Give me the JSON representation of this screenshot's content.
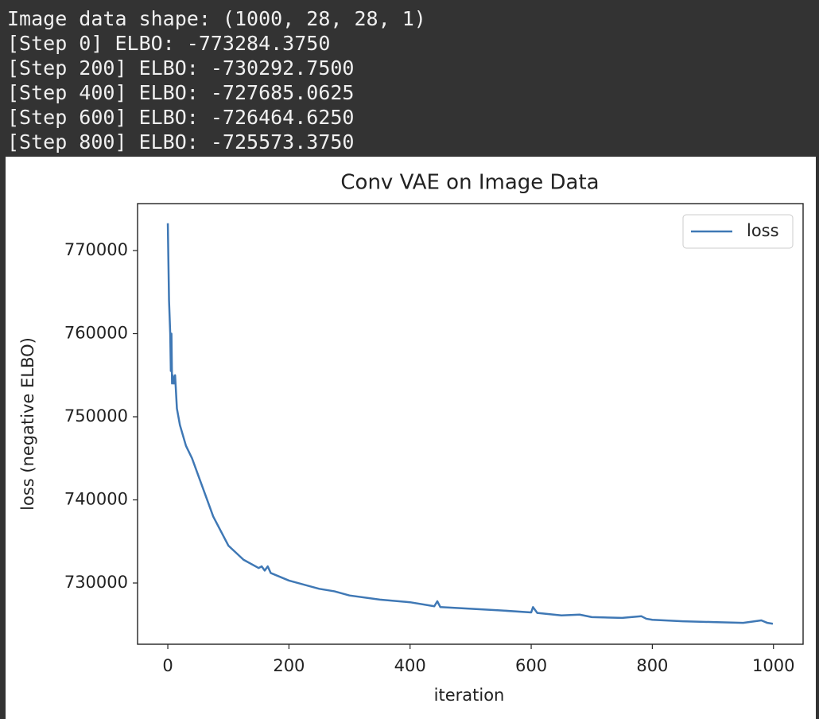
{
  "console": {
    "lines": [
      "Image data shape: (1000, 28, 28, 1)",
      "[Step 0] ELBO: -773284.3750",
      "[Step 200] ELBO: -730292.7500",
      "[Step 400] ELBO: -727685.0625",
      "[Step 600] ELBO: -726464.6250",
      "[Step 800] ELBO: -725573.3750"
    ]
  },
  "chart_data": {
    "type": "line",
    "title": "Conv VAE on Image Data",
    "x_label": "iteration",
    "y_label": "loss (negative ELBO)",
    "x": [
      0,
      2,
      4,
      5,
      6,
      7,
      8,
      10,
      12,
      15,
      20,
      30,
      40,
      50,
      60,
      75,
      100,
      125,
      150,
      155,
      160,
      165,
      170,
      200,
      250,
      275,
      300,
      350,
      400,
      440,
      445,
      450,
      500,
      550,
      600,
      603,
      610,
      650,
      680,
      700,
      750,
      782,
      790,
      800,
      850,
      900,
      950,
      980,
      990,
      999
    ],
    "series": [
      {
        "name": "loss",
        "color": "#3f78b5",
        "values": [
          773284,
          764000,
          760000,
          755500,
          760000,
          754000,
          755000,
          754000,
          755000,
          751000,
          749000,
          746500,
          745000,
          743000,
          741000,
          738000,
          734500,
          732800,
          731800,
          732000,
          731500,
          732000,
          731200,
          730293,
          729300,
          729000,
          728500,
          728000,
          727685,
          727200,
          727800,
          727100,
          726900,
          726700,
          726465,
          727100,
          726400,
          726100,
          726200,
          725900,
          725800,
          726000,
          725700,
          725573,
          725400,
          725300,
          725200,
          725500,
          725200,
          725100
        ]
      }
    ],
    "xlim": [
      -49.95,
      1048.95
    ],
    "ylim": [
      722632,
      775646
    ],
    "xticks": [
      0,
      200,
      400,
      600,
      800,
      1000
    ],
    "yticks": [
      730000,
      740000,
      750000,
      760000,
      770000
    ],
    "grid": false,
    "legend": "upper right"
  }
}
